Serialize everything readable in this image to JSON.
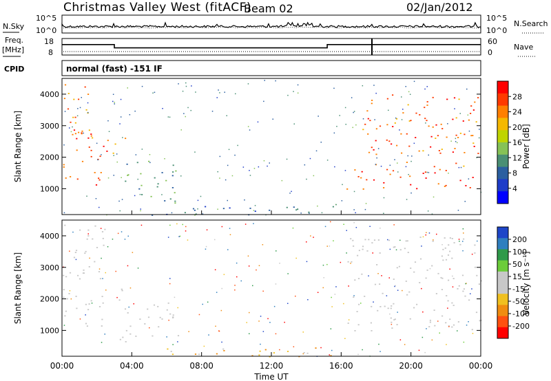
{
  "header": {
    "station": "Christmas Valley West (fitACF)",
    "beam": "Beam 02",
    "date": "02/Jan/2012"
  },
  "noise_panel": {
    "left_label": "N.Sky",
    "right_label": "N.Search",
    "tick_hi": "10^5",
    "tick_lo": "10^0"
  },
  "freq_panel": {
    "left_label_1": "Freq.",
    "left_label_2": "[MHz]",
    "right_label": "Nave",
    "left_ticks": [
      "18",
      "8"
    ],
    "right_ticks": [
      "60",
      "0"
    ]
  },
  "cpid": {
    "label": "CPID",
    "text": "normal (fast) -151 IF"
  },
  "power_panel": {
    "ylabel": "Slant Range [km]",
    "yticks": [
      "4000",
      "3000",
      "2000",
      "1000"
    ],
    "colorbar_label": "Power [dB]",
    "colorbar_ticks": [
      "28",
      "24",
      "20",
      "16",
      "12",
      "8",
      "4"
    ],
    "colorbar_colors": [
      "#ff0000",
      "#ff3a00",
      "#ff7f00",
      "#f5b800",
      "#bfd400",
      "#86c256",
      "#4a8f74",
      "#2b5fa0",
      "#1e3cc8",
      "#0000ff"
    ]
  },
  "velocity_panel": {
    "ylabel": "Slant Range [km]",
    "yticks": [
      "4000",
      "3000",
      "2000",
      "1000"
    ],
    "colorbar_label": "Velocity [m s⁻¹]",
    "colorbar_ticks": [
      "200",
      "100",
      "50",
      "15",
      "-15",
      "-50",
      "-100",
      "-200"
    ],
    "colorbar_colors": [
      "#1e46c8",
      "#2f7fbf",
      "#2f9a4a",
      "#6ccc3a",
      "#c8c8c8",
      "#c8c8c8",
      "#f0c020",
      "#f08c10",
      "#ff5010",
      "#ff0000"
    ]
  },
  "xaxis": {
    "label": "Time UT",
    "ticks": [
      "00:00",
      "04:00",
      "08:00",
      "12:00",
      "16:00",
      "20:00",
      "00:00"
    ]
  },
  "chart_data": {
    "type": "heatmap",
    "title": "Christmas Valley West (fitACF)",
    "x_range_hours": [
      0,
      24
    ],
    "y_range_km": [
      180,
      4500
    ],
    "freq_steps": [
      {
        "start_hr": 0.0,
        "end_hr": 3.0,
        "mhz": 15
      },
      {
        "start_hr": 3.0,
        "end_hr": 15.2,
        "mhz": 12
      },
      {
        "start_hr": 15.2,
        "end_hr": 24.0,
        "mhz": 15
      }
    ],
    "power_regions": [
      {
        "t0": 0.1,
        "t1": 1.8,
        "r0": 2300,
        "r1": 4400,
        "db": 26,
        "spread": 400
      },
      {
        "t0": 0.0,
        "t1": 2.6,
        "r0": 1100,
        "r1": 3000,
        "db": 28,
        "spread": 350
      },
      {
        "t0": 2.9,
        "t1": 3.6,
        "r0": 1900,
        "r1": 2700,
        "db": 22,
        "spread": 300
      },
      {
        "t0": 3.3,
        "t1": 6.7,
        "r0": 550,
        "r1": 1900,
        "db": 10,
        "spread": 250
      },
      {
        "t0": 5.0,
        "t1": 16.5,
        "r0": 180,
        "r1": 500,
        "db": 8,
        "spread": 180
      },
      {
        "t0": 16.3,
        "t1": 24.0,
        "r0": 1000,
        "r1": 1700,
        "db": 30,
        "spread": 300
      },
      {
        "t0": 17.2,
        "t1": 24.0,
        "r0": 1700,
        "r1": 4000,
        "db": 27,
        "spread": 400
      }
    ],
    "velocity_regions": [
      {
        "t0": 0.0,
        "t1": 2.6,
        "r0": 1100,
        "r1": 4400,
        "ms": 0
      },
      {
        "t0": 2.9,
        "t1": 3.6,
        "r0": 1900,
        "r1": 2700,
        "ms": 0
      },
      {
        "t0": 3.3,
        "t1": 6.7,
        "r0": 550,
        "r1": 1900,
        "ms": 0
      },
      {
        "t0": 5.0,
        "t1": 16.5,
        "r0": 180,
        "r1": 500,
        "ms": -30
      },
      {
        "t0": 16.3,
        "t1": 24.0,
        "r0": 1000,
        "r1": 4000,
        "ms": 0
      }
    ]
  }
}
